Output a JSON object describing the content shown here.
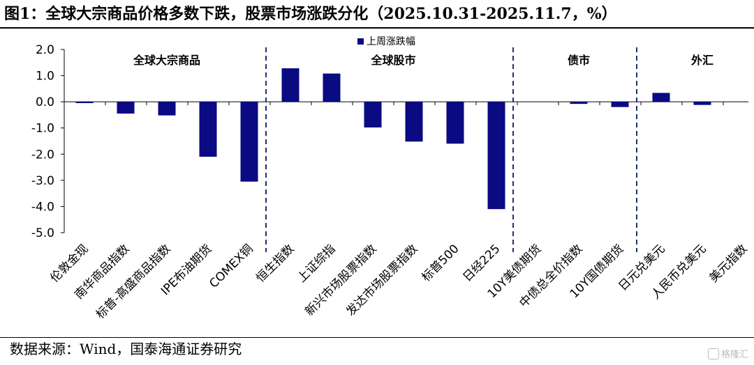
{
  "title": "图1：全球大宗商品价格多数下跌，股票市场涨跌分化（2025.10.31-2025.11.7，%）",
  "source": "数据来源：Wind，国泰海通证券研究",
  "watermark": "格隆汇",
  "chart_data": {
    "type": "bar",
    "ylim": [
      -5.0,
      2.0
    ],
    "yticks": [
      "2.0",
      "1.0",
      "0.0",
      "-1.0",
      "-2.0",
      "-3.0",
      "-4.0",
      "-5.0"
    ],
    "grid": false,
    "legend_position": "top-center",
    "categories": [
      "伦敦金现",
      "南华商品指数",
      "标普-高盛商品指数",
      "IPE布油期货",
      "COMEX铜",
      "恒生指数",
      "上证综指",
      "新兴市场股票指数",
      "发达市场股票指数",
      "标普500",
      "日经225",
      "10Y美债期货",
      "中债总全价指数",
      "10Y国债期货",
      "日元兑美元",
      "人民币兑美元",
      "美元指数"
    ],
    "series": [
      {
        "name": "上周涨跌幅",
        "color": "#0a0a82",
        "values": [
          -0.05,
          -0.45,
          -0.52,
          -2.1,
          -3.05,
          1.28,
          1.08,
          -0.98,
          -1.52,
          -1.6,
          -4.1,
          0.0,
          -0.08,
          -0.2,
          0.34,
          -0.12,
          0.0
        ]
      }
    ],
    "groups": [
      {
        "label": "全球大宗商品",
        "start": 0,
        "end": 4
      },
      {
        "label": "全球股市",
        "start": 5,
        "end": 10
      },
      {
        "label": "债市",
        "start": 11,
        "end": 13
      },
      {
        "label": "外汇",
        "start": 14,
        "end": 16
      }
    ]
  }
}
